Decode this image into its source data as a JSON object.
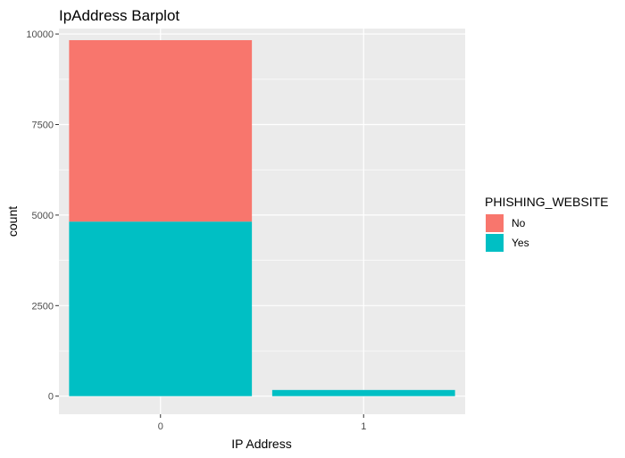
{
  "chart_data": {
    "type": "bar",
    "stacked": true,
    "title": "IpAddress Barplot",
    "xlabel": "IP Address",
    "ylabel": "count",
    "categories": [
      "0",
      "1"
    ],
    "series": [
      {
        "name": "No",
        "color": "#F8766D",
        "values": [
          5010,
          0
        ]
      },
      {
        "name": "Yes",
        "color": "#00BFC4",
        "values": [
          4820,
          170
        ]
      }
    ],
    "ylim": [
      -500,
      10150
    ],
    "yticks": [
      0,
      2500,
      5000,
      7500,
      10000
    ],
    "ytick_labels": [
      "0",
      "2500",
      "5000",
      "7500",
      "10000"
    ],
    "grid": true,
    "legend": {
      "title": "PHISHING_WEBSITE",
      "position": "right",
      "labels": [
        "No",
        "Yes"
      ]
    },
    "colors": {
      "panel_background": "#EBEBEB",
      "grid": "#FFFFFF",
      "no": "#F8766D",
      "yes": "#00BFC4"
    }
  }
}
